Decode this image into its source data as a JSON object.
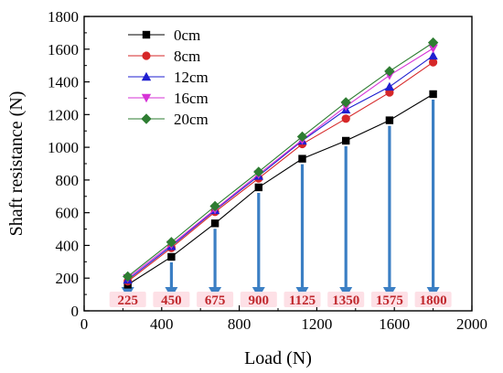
{
  "chart_data": {
    "type": "line",
    "xlabel": "Load (N)",
    "ylabel": "Shaft resistance (N)",
    "xlim": [
      0,
      2000
    ],
    "ylim": [
      0,
      1800
    ],
    "xticks": [
      "0",
      "400",
      "800",
      "1200",
      "1600",
      "2000"
    ],
    "yticks": [
      "0",
      "200",
      "400",
      "600",
      "800",
      "1000",
      "1200",
      "1400",
      "1600",
      "1800"
    ],
    "grid": false,
    "legend_position": "top-left",
    "x": [
      225,
      450,
      675,
      900,
      1125,
      1350,
      1575,
      1800
    ],
    "series": [
      {
        "name": "0cm",
        "color": "#000000",
        "marker": "square",
        "values": [
          160,
          330,
          535,
          755,
          930,
          1040,
          1165,
          1325
        ]
      },
      {
        "name": "8cm",
        "color": "#d62728",
        "marker": "circle",
        "values": [
          180,
          385,
          605,
          810,
          1020,
          1175,
          1335,
          1520
        ]
      },
      {
        "name": "12cm",
        "color": "#1f1fd0",
        "marker": "triangle-up",
        "values": [
          190,
          395,
          615,
          825,
          1040,
          1230,
          1370,
          1560
        ]
      },
      {
        "name": "16cm",
        "color": "#d633d6",
        "marker": "triangle-down",
        "values": [
          200,
          405,
          620,
          835,
          1045,
          1250,
          1440,
          1605
        ]
      },
      {
        "name": "20cm",
        "color": "#2e7d32",
        "marker": "diamond",
        "values": [
          210,
          420,
          640,
          850,
          1065,
          1275,
          1465,
          1640
        ]
      }
    ],
    "annotations": {
      "arrow_color": "#3b7fc4",
      "label_color": "#c0282d",
      "label_bg": "#fde0e6",
      "labels": [
        "225",
        "450",
        "675",
        "900",
        "1125",
        "1350",
        "1575",
        "1800"
      ],
      "values": [
        225,
        450,
        675,
        900,
        1125,
        1350,
        1575,
        1800
      ],
      "arrow_from_series": "0cm",
      "arrow_to_y": 0
    }
  }
}
